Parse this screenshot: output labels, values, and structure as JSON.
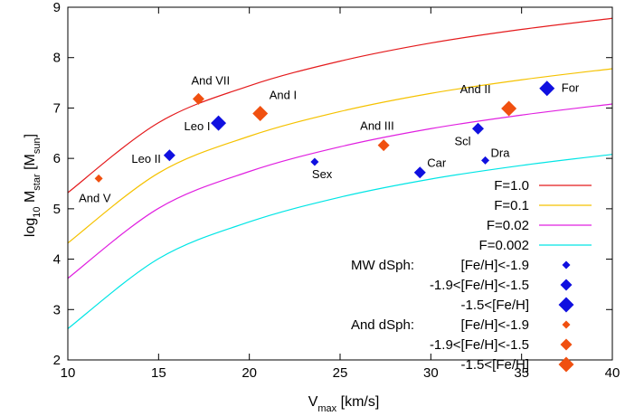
{
  "chart_data": {
    "type": "scatter",
    "xlabel": {
      "main": "V",
      "sub": "max",
      "rest": " [km/s]"
    },
    "ylabel": {
      "pre": "log",
      "sub1": "10",
      "mid": " M",
      "sub2": "star",
      "mid2": " [M",
      "sub3": "sun",
      "post": "]"
    },
    "xlim": [
      10,
      40
    ],
    "ylim": [
      2,
      9
    ],
    "x_ticks": [
      10,
      15,
      20,
      25,
      30,
      35,
      40
    ],
    "y_ticks": [
      2,
      3,
      4,
      5,
      6,
      7,
      8,
      9
    ],
    "grid": false,
    "legend_position": "bottom-right",
    "curves": [
      {
        "name": "F=1.0",
        "color": "#e41a1c",
        "values": [
          [
            10,
            5.32
          ],
          [
            15,
            6.71
          ],
          [
            20,
            7.44
          ],
          [
            25,
            7.93
          ],
          [
            30,
            8.29
          ],
          [
            35,
            8.56
          ],
          [
            40,
            8.78
          ]
        ]
      },
      {
        "name": "F=0.1",
        "color": "#f5c200",
        "values": [
          [
            10,
            4.32
          ],
          [
            15,
            5.71
          ],
          [
            20,
            6.44
          ],
          [
            25,
            6.93
          ],
          [
            30,
            7.29
          ],
          [
            35,
            7.56
          ],
          [
            40,
            7.78
          ]
        ]
      },
      {
        "name": "F=0.02",
        "color": "#e020e0",
        "values": [
          [
            10,
            3.62
          ],
          [
            15,
            5.01
          ],
          [
            20,
            5.74
          ],
          [
            25,
            6.23
          ],
          [
            30,
            6.59
          ],
          [
            35,
            6.86
          ],
          [
            40,
            7.08
          ]
        ]
      },
      {
        "name": "F=0.002",
        "color": "#00e5e5",
        "values": [
          [
            10,
            2.62
          ],
          [
            15,
            4.01
          ],
          [
            20,
            4.74
          ],
          [
            25,
            5.23
          ],
          [
            30,
            5.59
          ],
          [
            35,
            5.86
          ],
          [
            40,
            6.08
          ]
        ]
      }
    ],
    "point_groups": [
      {
        "group_label": "MW dSph:",
        "bins": [
          {
            "name": "[Fe/H]<-1.9",
            "color": "#1010e0",
            "size": 1
          },
          {
            "name": "-1.9<[Fe/H]<-1.5",
            "color": "#1010e0",
            "size": 2
          },
          {
            "name": "-1.5<[Fe/H]",
            "color": "#1010e0",
            "size": 3
          }
        ]
      },
      {
        "group_label": "And dSph:",
        "bins": [
          {
            "name": "[Fe/H]<-1.9",
            "color": "#f05010",
            "size": 1
          },
          {
            "name": "-1.9<[Fe/H]<-1.5",
            "color": "#f05010",
            "size": 2
          },
          {
            "name": "-1.5<[Fe/H]",
            "color": "#f05010",
            "size": 3
          }
        ]
      }
    ],
    "points": [
      {
        "label": "And V",
        "x": 11.7,
        "y": 5.6,
        "group": 1,
        "bin": 0
      },
      {
        "label": "Leo II",
        "x": 15.6,
        "y": 6.06,
        "group": 0,
        "bin": 1
      },
      {
        "label": "And VII",
        "x": 17.2,
        "y": 7.18,
        "group": 1,
        "bin": 1
      },
      {
        "label": "Leo I",
        "x": 18.3,
        "y": 6.7,
        "group": 0,
        "bin": 2
      },
      {
        "label": "And I",
        "x": 20.6,
        "y": 6.89,
        "group": 1,
        "bin": 2
      },
      {
        "label": "Sex",
        "x": 23.6,
        "y": 5.93,
        "group": 0,
        "bin": 0
      },
      {
        "label": "And III",
        "x": 27.4,
        "y": 6.26,
        "group": 1,
        "bin": 1
      },
      {
        "label": "Car",
        "x": 29.4,
        "y": 5.72,
        "group": 0,
        "bin": 1
      },
      {
        "label": "Scl",
        "x": 32.6,
        "y": 6.59,
        "group": 0,
        "bin": 1
      },
      {
        "label": "Dra",
        "x": 33.0,
        "y": 5.96,
        "group": 0,
        "bin": 0
      },
      {
        "label": "And II",
        "x": 34.3,
        "y": 6.99,
        "group": 1,
        "bin": 2
      },
      {
        "label": "For",
        "x": 36.4,
        "y": 7.39,
        "group": 0,
        "bin": 2
      }
    ]
  }
}
